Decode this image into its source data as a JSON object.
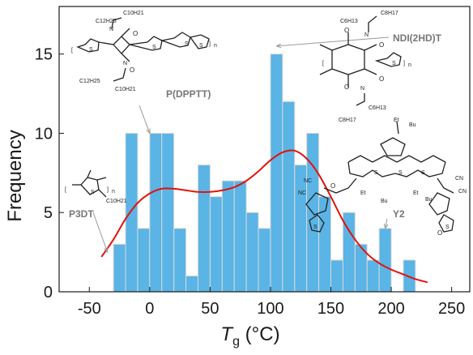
{
  "chart_data": {
    "type": "bar",
    "subtype": "histogram",
    "bin_width": 10,
    "bins": [
      {
        "x0": -30,
        "x1": -20,
        "count": 3
      },
      {
        "x0": -20,
        "x1": -10,
        "count": 10
      },
      {
        "x0": -10,
        "x1": 0,
        "count": 4
      },
      {
        "x0": 0,
        "x1": 10,
        "count": 10
      },
      {
        "x0": 10,
        "x1": 20,
        "count": 10
      },
      {
        "x0": 20,
        "x1": 30,
        "count": 4
      },
      {
        "x0": 30,
        "x1": 40,
        "count": 1
      },
      {
        "x0": 40,
        "x1": 50,
        "count": 8
      },
      {
        "x0": 50,
        "x1": 60,
        "count": 6
      },
      {
        "x0": 60,
        "x1": 70,
        "count": 7
      },
      {
        "x0": 70,
        "x1": 80,
        "count": 7
      },
      {
        "x0": 80,
        "x1": 90,
        "count": 5
      },
      {
        "x0": 90,
        "x1": 100,
        "count": 4
      },
      {
        "x0": 100,
        "x1": 110,
        "count": 15
      },
      {
        "x0": 110,
        "x1": 120,
        "count": 12
      },
      {
        "x0": 120,
        "x1": 130,
        "count": 8
      },
      {
        "x0": 130,
        "x1": 140,
        "count": 10
      },
      {
        "x0": 140,
        "x1": 150,
        "count": 6
      },
      {
        "x0": 150,
        "x1": 160,
        "count": 2
      },
      {
        "x0": 160,
        "x1": 170,
        "count": 5
      },
      {
        "x0": 170,
        "x1": 180,
        "count": 3
      },
      {
        "x0": 180,
        "x1": 190,
        "count": 2
      },
      {
        "x0": 190,
        "x1": 200,
        "count": 4
      },
      {
        "x0": 200,
        "x1": 210,
        "count": 0
      },
      {
        "x0": 210,
        "x1": 220,
        "count": 2
      }
    ],
    "fit_curve": {
      "x": [
        -40,
        -30,
        -20,
        -10,
        0,
        10,
        20,
        30,
        40,
        50,
        60,
        70,
        80,
        90,
        100,
        110,
        120,
        130,
        140,
        150,
        160,
        170,
        180,
        190,
        200,
        210,
        220,
        230
      ],
      "y": [
        2.2,
        3.3,
        4.6,
        5.6,
        6.2,
        6.5,
        6.5,
        6.4,
        6.3,
        6.3,
        6.4,
        6.6,
        7.0,
        7.6,
        8.3,
        8.8,
        8.9,
        8.4,
        7.4,
        6.0,
        4.5,
        3.3,
        2.4,
        1.8,
        1.4,
        1.1,
        0.8,
        0.6
      ]
    },
    "xlabel": "T",
    "xlabel_subscript": "g",
    "xlabel_unit": " (°C)",
    "ylabel": "Frequency",
    "xlim": [
      -75,
      265
    ],
    "ylim": [
      0,
      18
    ],
    "xticks": [
      -50,
      0,
      50,
      100,
      150,
      200,
      250
    ],
    "yticks": [
      0,
      5,
      10,
      15
    ],
    "grid": false,
    "legend": "none",
    "annotations": [
      {
        "label": "P3DT",
        "points_to_x": -35,
        "points_to_y": 2.5
      },
      {
        "label": "P(DPPTT)",
        "points_to_x": 0,
        "points_to_y": 10
      },
      {
        "label": "NDI(2HD)T",
        "points_to_x": 105,
        "points_to_y": 15.5
      },
      {
        "label": "Y2",
        "points_to_x": 195,
        "points_to_y": 4
      }
    ],
    "colors": {
      "bar_fill": "#5ab4e5",
      "bar_edge": "#d9d9d9",
      "fit_line": "#e3120b",
      "arrow": "#999999",
      "label": "#777777"
    }
  },
  "structures": {
    "p3dt_sub": "C10H21",
    "dpptt_sub_top_1": "C10H21",
    "dpptt_sub_top_2": "C12H25",
    "dpptt_sub_bot_1": "C12H25",
    "dpptt_sub_bot_2": "C10H21",
    "ndi_sub_top_1": "C8H17",
    "ndi_sub_top_2": "C6H13",
    "ndi_sub_bot_1": "C6H13",
    "ndi_sub_bot_2": "C8H17",
    "y2_sub": "Et",
    "y2_sub_2": "Bu",
    "atom_o": "O",
    "atom_n": "N",
    "atom_s": "S",
    "atom_cn": "NC",
    "atom_cn2": "CN",
    "n_repeat": "n"
  }
}
